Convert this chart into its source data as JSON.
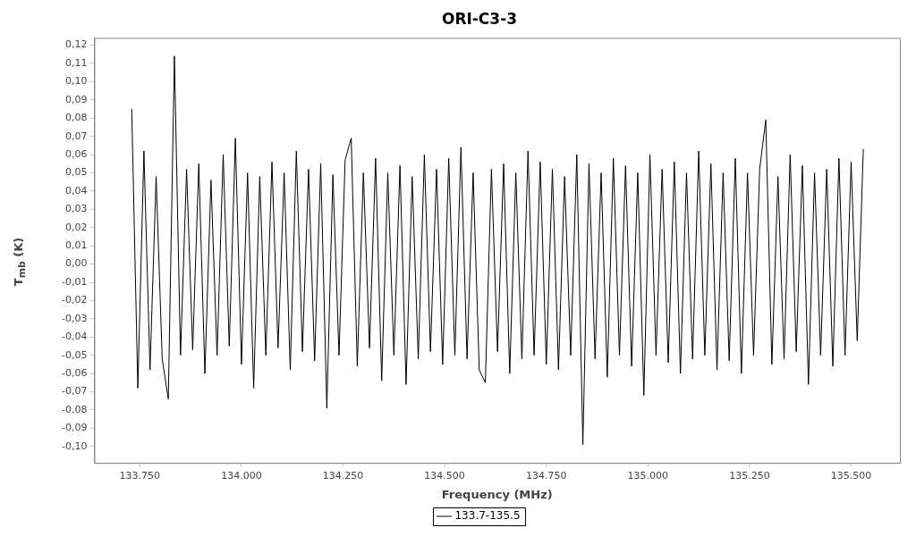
{
  "chart_data": {
    "type": "line",
    "title": "ORI-C3-3",
    "xlabel": "Frequency (MHz)",
    "ylabel": "T$_{mb}$ (K)",
    "x": [
      133730,
      133745,
      133760,
      133775,
      133790,
      133805,
      133820,
      133835,
      133850,
      133865,
      133880,
      133895,
      133910,
      133925,
      133940,
      133955,
      133970,
      133985,
      134000,
      134015,
      134030,
      134045,
      134060,
      134075,
      134090,
      134105,
      134120,
      134135,
      134150,
      134165,
      134180,
      134195,
      134210,
      134225,
      134240,
      134255,
      134270,
      134285,
      134300,
      134315,
      134330,
      134345,
      134360,
      134375,
      134390,
      134405,
      134420,
      134435,
      134450,
      134465,
      134480,
      134495,
      134510,
      134525,
      134540,
      134555,
      134570,
      134585,
      134600,
      134615,
      134630,
      134645,
      134660,
      134675,
      134690,
      134705,
      134720,
      134735,
      134750,
      134765,
      134780,
      134795,
      134810,
      134825,
      134840,
      134855,
      134870,
      134885,
      134900,
      134915,
      134930,
      134945,
      134960,
      134975,
      134990,
      135005,
      135020,
      135035,
      135050,
      135065,
      135080,
      135095,
      135110,
      135125,
      135140,
      135155,
      135170,
      135185,
      135200,
      135215,
      135230,
      135245,
      135260,
      135275,
      135290,
      135305,
      135320,
      135335,
      135350,
      135365,
      135380,
      135395,
      135410,
      135425,
      135440,
      135455,
      135470,
      135485,
      135500,
      135515,
      135530
    ],
    "series": [
      {
        "name": "133.7-135.5",
        "color": "#000000",
        "values": [
          0.085,
          -0.068,
          0.062,
          -0.058,
          0.048,
          -0.052,
          -0.074,
          0.114,
          -0.05,
          0.052,
          -0.047,
          0.055,
          -0.06,
          0.046,
          -0.05,
          0.06,
          -0.045,
          0.069,
          -0.055,
          0.05,
          -0.068,
          0.048,
          -0.05,
          0.056,
          -0.046,
          0.05,
          -0.058,
          0.062,
          -0.048,
          0.052,
          -0.053,
          0.055,
          -0.079,
          0.049,
          -0.05,
          0.057,
          0.069,
          -0.056,
          0.05,
          -0.046,
          0.058,
          -0.064,
          0.05,
          -0.05,
          0.054,
          -0.066,
          0.048,
          -0.052,
          0.06,
          -0.048,
          0.052,
          -0.055,
          0.058,
          -0.05,
          0.064,
          -0.052,
          0.05,
          -0.058,
          -0.065,
          0.052,
          -0.048,
          0.055,
          -0.06,
          0.05,
          -0.052,
          0.062,
          -0.05,
          0.056,
          -0.055,
          0.052,
          -0.058,
          0.048,
          -0.05,
          0.06,
          -0.099,
          0.055,
          -0.052,
          0.05,
          -0.062,
          0.058,
          -0.05,
          0.054,
          -0.056,
          0.05,
          -0.072,
          0.06,
          -0.05,
          0.052,
          -0.054,
          0.056,
          -0.06,
          0.05,
          -0.052,
          0.062,
          -0.05,
          0.055,
          -0.058,
          0.05,
          -0.053,
          0.058,
          -0.06,
          0.05,
          -0.05,
          0.052,
          0.079,
          -0.055,
          0.048,
          -0.052,
          0.06,
          -0.048,
          0.054,
          -0.066,
          0.05,
          -0.05,
          0.052,
          -0.056,
          0.058,
          -0.05,
          0.056,
          -0.042,
          0.063
        ]
      }
    ],
    "xlim": [
      133638,
      135620
    ],
    "xticks": [
      {
        "value": 133750,
        "label": "133.750"
      },
      {
        "value": 134000,
        "label": "134.000"
      },
      {
        "value": 134250,
        "label": "134.250"
      },
      {
        "value": 134500,
        "label": "134.500"
      },
      {
        "value": 134750,
        "label": "134.750"
      },
      {
        "value": 135000,
        "label": "135.000"
      },
      {
        "value": 135250,
        "label": "135.250"
      },
      {
        "value": 135500,
        "label": "135.500"
      }
    ],
    "ylim": [
      -0.109,
      0.124
    ],
    "yticks": [
      {
        "value": 0.12,
        "label": "0,12"
      },
      {
        "value": 0.11,
        "label": "0,11"
      },
      {
        "value": 0.1,
        "label": "0,10"
      },
      {
        "value": 0.09,
        "label": "0,09"
      },
      {
        "value": 0.08,
        "label": "0,08"
      },
      {
        "value": 0.07,
        "label": "0,07"
      },
      {
        "value": 0.06,
        "label": "0,06"
      },
      {
        "value": 0.05,
        "label": "0,05"
      },
      {
        "value": 0.04,
        "label": "0,04"
      },
      {
        "value": 0.03,
        "label": "0,03"
      },
      {
        "value": 0.02,
        "label": "0,02"
      },
      {
        "value": 0.01,
        "label": "0,01"
      },
      {
        "value": 0,
        "label": "0,00"
      },
      {
        "value": -0.01,
        "label": "-0,01"
      },
      {
        "value": -0.02,
        "label": "-0,02"
      },
      {
        "value": -0.03,
        "label": "-0,03"
      },
      {
        "value": -0.04,
        "label": "-0,04"
      },
      {
        "value": -0.05,
        "label": "-0,05"
      },
      {
        "value": -0.06,
        "label": "-0,06"
      },
      {
        "value": -0.07,
        "label": "-0,07"
      },
      {
        "value": -0.08,
        "label": "-0,08"
      },
      {
        "value": -0.09,
        "label": "-0,09"
      },
      {
        "value": -0.1,
        "label": "-0,10"
      }
    ],
    "grid": false,
    "legend": "bottom",
    "line_style": "solid"
  }
}
